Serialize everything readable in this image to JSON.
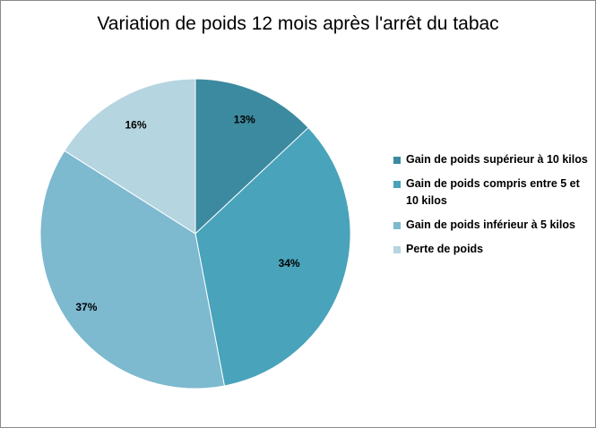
{
  "chart_data": {
    "type": "pie",
    "title": "Variation de poids 12 mois après l'arrêt du tabac",
    "slices": [
      {
        "label": "Gain de poids supérieur à 10 kilos",
        "value": 13,
        "display": "13%",
        "color": "#3c8aa0"
      },
      {
        "label": "Gain de poids compris entre 5 et 10 kilos",
        "value": 34,
        "display": "34%",
        "color": "#48a3bb"
      },
      {
        "label": "Gain de poids inférieur à 5 kilos",
        "value": 37,
        "display": "37%",
        "color": "#7db9cf"
      },
      {
        "label": "Perte de poids",
        "value": 16,
        "display": "16%",
        "color": "#b5d5e0"
      }
    ],
    "start_angle": "12 o'clock",
    "direction": "clockwise",
    "legend_position": "right"
  }
}
